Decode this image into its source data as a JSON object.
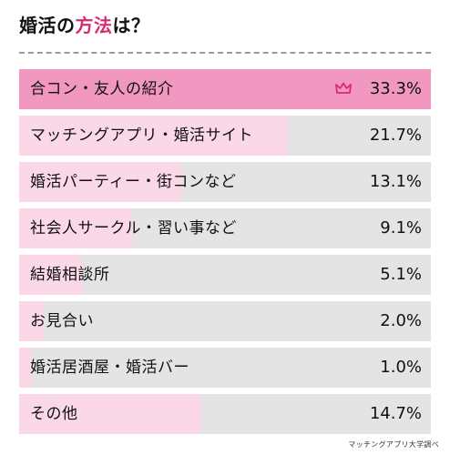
{
  "header": {
    "title_main": "婚活の",
    "title_accent": "方法",
    "title_tail": "は？"
  },
  "source": "マッチングアプリ大学調べ",
  "colors": {
    "accent": "#d62b6e",
    "top_fill": "#f298c0",
    "fill": "#fbd8e8",
    "track": "#e4e4e4",
    "crown": "#d62b6e"
  },
  "chart_data": {
    "type": "bar",
    "orientation": "horizontal",
    "categories": [
      "合コン・友人の紹介",
      "マッチングアプリ・婚活サイト",
      "婚活パーティー・街コンなど",
      "社会人サークル・習い事など",
      "結婚相談所",
      "お見合い",
      "婚活居酒屋・婚活バー",
      "その他"
    ],
    "values": [
      33.3,
      21.7,
      13.1,
      9.1,
      5.1,
      2.0,
      1.0,
      14.7
    ],
    "value_labels": [
      "33.3%",
      "21.7%",
      "13.1%",
      "9.1%",
      "5.1%",
      "2.0%",
      "1.0%",
      "14.7%"
    ],
    "xlim": [
      0,
      33.3
    ],
    "top_icon": "crown-icon"
  }
}
